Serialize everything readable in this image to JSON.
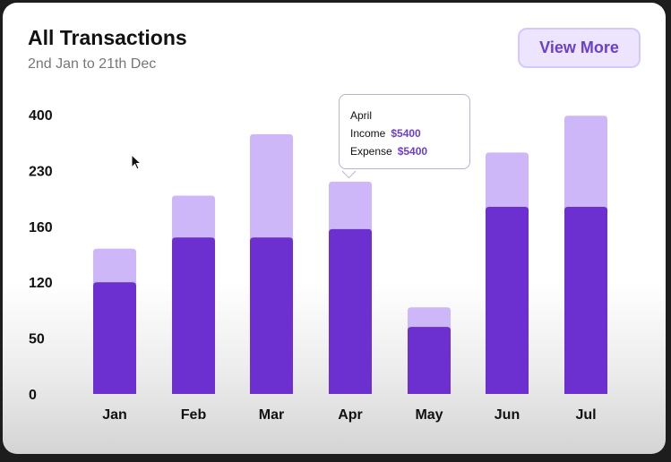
{
  "header": {
    "title": "All Transactions",
    "subtitle": "2nd Jan to 21th Dec",
    "view_more_label": "View More"
  },
  "colors": {
    "expense": "#cdb7f8",
    "income": "#6b30cf",
    "accent": "#6a3fd0"
  },
  "tooltip": {
    "month": "April",
    "income_label": "Income",
    "income_value": "$5400",
    "expense_label": "Expense",
    "expense_value": "$5400"
  },
  "chart_data": {
    "type": "bar",
    "stacked": true,
    "title": "All Transactions",
    "categories": [
      "Jan",
      "Feb",
      "Mar",
      "Apr",
      "May",
      "Jun",
      "Jul"
    ],
    "y_ticks": [
      "400",
      "230",
      "160",
      "120",
      "50",
      "0"
    ],
    "series": [
      {
        "name": "Income",
        "values": [
          2.0,
          2.8,
          2.8,
          2.95,
          1.2,
          3.35,
          3.35
        ]
      },
      {
        "name": "Expense",
        "values": [
          0.6,
          0.75,
          1.85,
          0.85,
          0.35,
          0.97,
          1.63
        ]
      }
    ],
    "grid": false,
    "legend": "none"
  }
}
